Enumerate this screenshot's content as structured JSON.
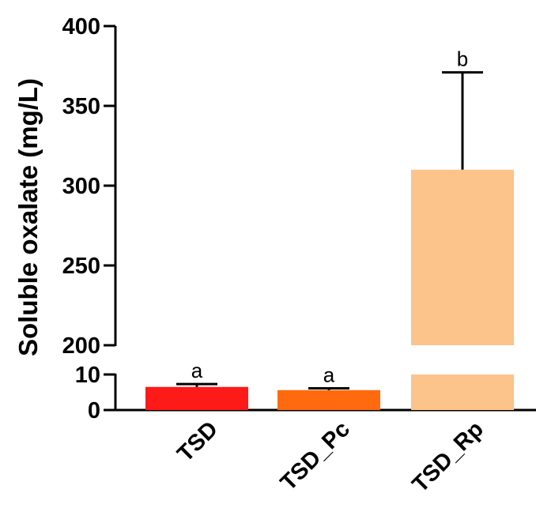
{
  "chart_data": {
    "type": "bar",
    "ylabel": "Soluble oxalate (mg/L)",
    "categories": [
      "TSD",
      "TSD_Pc",
      "TSD_Rp"
    ],
    "values": [
      6.5,
      5.6,
      310
    ],
    "errors": [
      0.8,
      0.5,
      61
    ],
    "significance": [
      "a",
      "a",
      "b"
    ],
    "colors": [
      "#ff1a1a",
      "#ff6a0f",
      "#fcc48b"
    ],
    "axis_break": {
      "lower_segment": [
        0,
        10
      ],
      "upper_segment": [
        200,
        400
      ]
    },
    "yticks_lower": [
      "0",
      "10"
    ],
    "yticks_upper": [
      "200",
      "250",
      "300",
      "350",
      "400"
    ],
    "grid": false,
    "legend": "none"
  }
}
